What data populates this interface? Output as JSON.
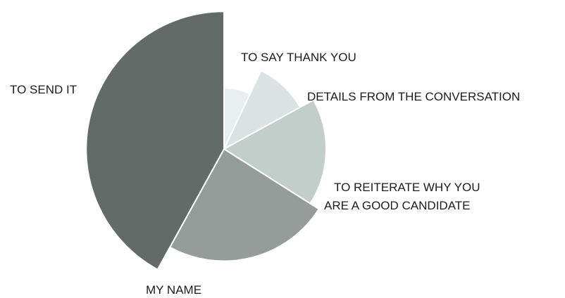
{
  "chart_data": {
    "type": "pie",
    "title": "",
    "style": "rose / variable-radius pie",
    "slices": [
      {
        "label": "TO SAY THANK YOU",
        "value": 0.6,
        "share_pct": 7,
        "color": "#e9eeee"
      },
      {
        "label": "DETAILS FROM THE CONVERSATION",
        "value": 0.85,
        "share_pct": 10,
        "color": "#dbe3e2"
      },
      {
        "label": "TO REITERATE WHY YOU ARE A GOOD CANDIDATE",
        "label_lines": [
          "TO REITERATE WHY YOU",
          "ARE A GOOD CANDIDATE"
        ],
        "value": 1.0,
        "share_pct": 17,
        "color": "#c2ceca"
      },
      {
        "label": "MY NAME",
        "value": 1.1,
        "share_pct": 24,
        "color": "#959c99"
      },
      {
        "label": "TO SEND IT",
        "value": 1.35,
        "share_pct": 42,
        "color": "#636b69"
      }
    ]
  }
}
